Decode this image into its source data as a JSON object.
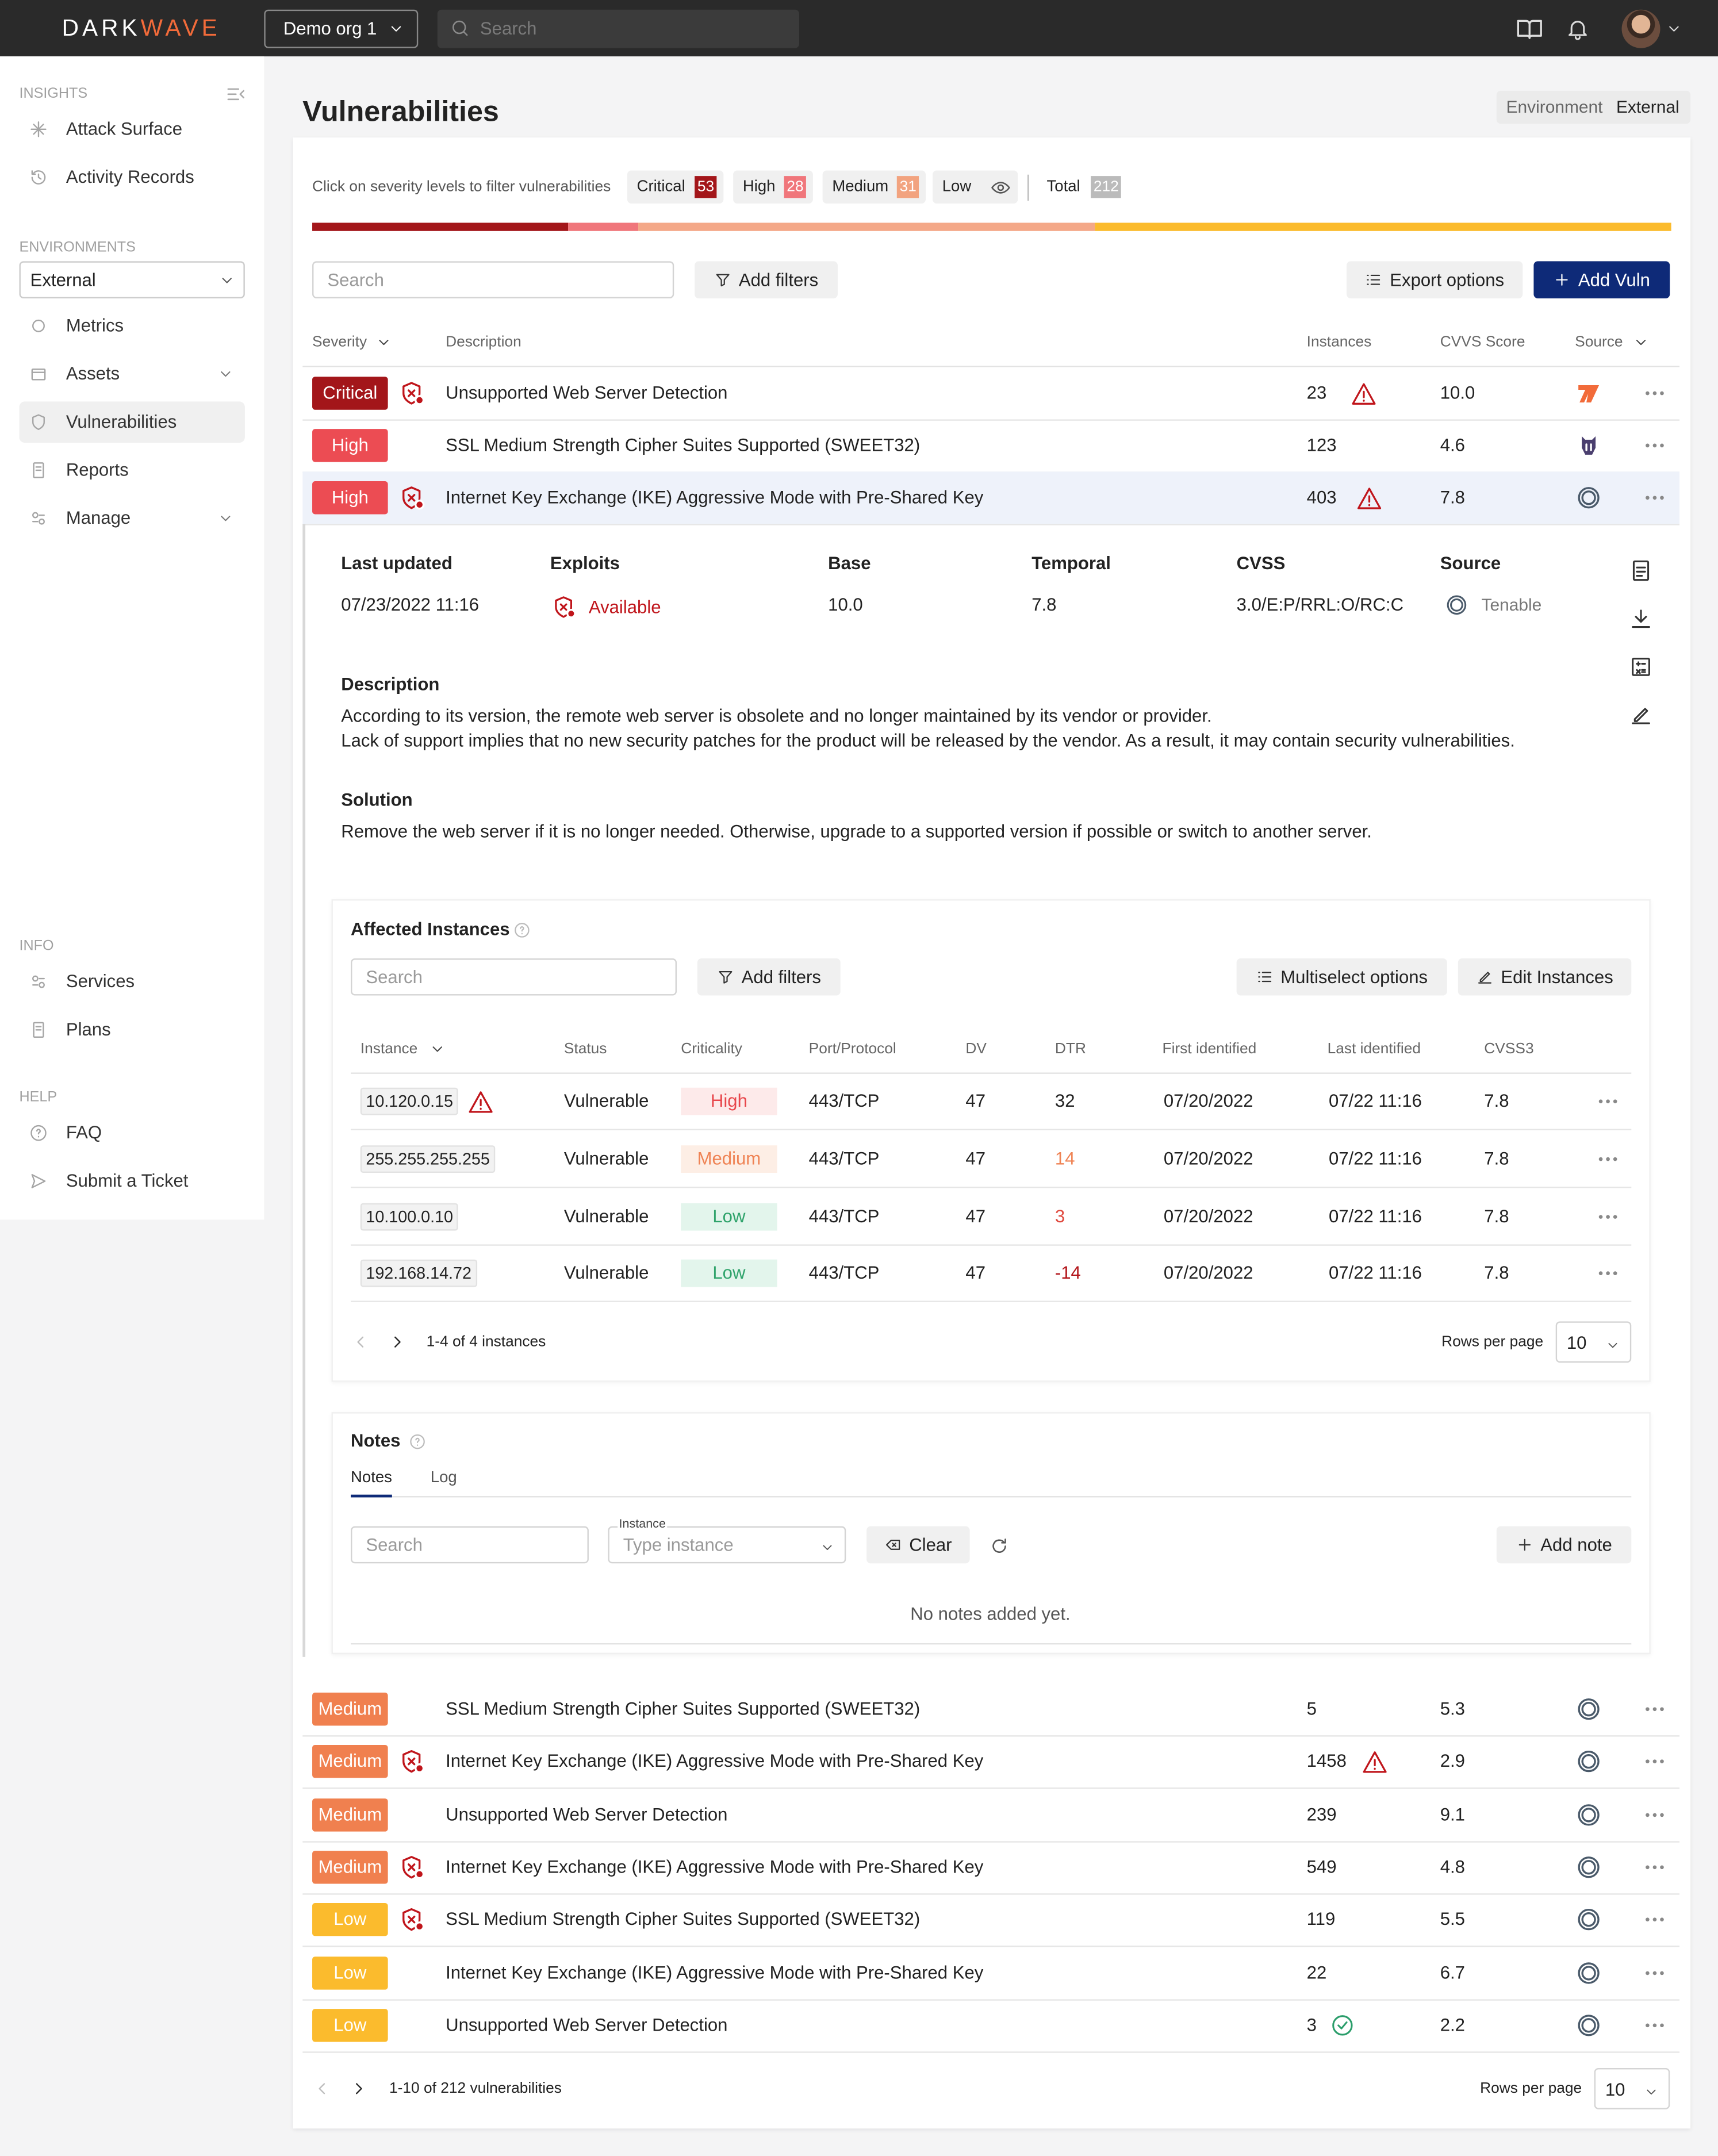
{
  "header": {
    "logo": [
      "DARK",
      "WAVE"
    ],
    "org": "Demo org 1",
    "search": "Search"
  },
  "sidebar": {
    "insights_label": "INSIGHTS",
    "insights": [
      "Attack Surface",
      "Activity Records"
    ],
    "environments_label": "ENVIRONMENTS",
    "environment": "External",
    "environment_items": [
      "Metrics",
      "Assets",
      "Vulnerabilities",
      "Reports",
      "Manage"
    ],
    "info_label": "INFO",
    "info": [
      "Services",
      "Plans"
    ],
    "help_label": "HELP",
    "help": [
      "FAQ",
      "Submit a Ticket"
    ]
  },
  "page": {
    "title": "Vulnerabilities",
    "env_label": "Environment",
    "env_value": "External"
  },
  "severity_filter": {
    "hint": "Click on severity levels to filter vulnerabilities",
    "levels": [
      {
        "label": "Critical",
        "count": 53
      },
      {
        "label": "High",
        "count": 28
      },
      {
        "label": "Medium",
        "count": 31
      },
      {
        "label": "Low"
      }
    ],
    "total_label": "Total",
    "total": 212
  },
  "toolbar": {
    "search": "Search",
    "add_filters": "Add filters",
    "export": "Export options",
    "add": "Add Vuln"
  },
  "table": {
    "columns": [
      "Severity",
      "Description",
      "Instances",
      "CVVS Score",
      "Source"
    ],
    "expanded": 2,
    "rows": [
      {
        "severity": "Critical",
        "exploit": true,
        "description": "Unsupported Web Server Detection",
        "instances": 23,
        "status_icon": "warning",
        "score": "10.0",
        "source": "sword"
      },
      {
        "severity": "High",
        "exploit": false,
        "description": "SSL Medium Strength Cipher Suites Supported (SWEET32)",
        "instances": 123,
        "score": "4.6",
        "source": "helmet"
      },
      {
        "severity": "High",
        "exploit": true,
        "description": "Internet Key Exchange (IKE) Aggressive Mode with Pre-Shared Key",
        "instances": 403,
        "status_icon": "warning",
        "score": "7.8",
        "source": "tenable"
      },
      {
        "severity": "Medium",
        "exploit": false,
        "description": "SSL Medium Strength Cipher Suites Supported (SWEET32)",
        "instances": 5,
        "score": "5.3",
        "source": "tenable"
      },
      {
        "severity": "Medium",
        "exploit": true,
        "description": "Internet Key Exchange (IKE) Aggressive Mode with Pre-Shared Key",
        "instances": 1458,
        "status_icon": "warning",
        "score": "2.9",
        "source": "tenable"
      },
      {
        "severity": "Medium",
        "exploit": false,
        "description": "Unsupported Web Server Detection",
        "instances": 239,
        "score": "9.1",
        "source": "tenable"
      },
      {
        "severity": "Medium",
        "exploit": true,
        "description": "Internet Key Exchange (IKE) Aggressive Mode with Pre-Shared Key",
        "instances": 549,
        "score": "4.8",
        "source": "tenable"
      },
      {
        "severity": "Low",
        "exploit": true,
        "description": "SSL Medium Strength Cipher Suites Supported (SWEET32)",
        "instances": 119,
        "score": "5.5",
        "source": "tenable"
      },
      {
        "severity": "Low",
        "exploit": false,
        "description": "Internet Key Exchange (IKE) Aggressive Mode with Pre-Shared Key",
        "instances": 22,
        "score": "6.7",
        "source": "tenable"
      },
      {
        "severity": "Low",
        "exploit": false,
        "description": "Unsupported Web Server Detection",
        "instances": 3,
        "status_icon": "ok",
        "score": "2.2",
        "source": "tenable"
      }
    ]
  },
  "detail": {
    "fields": [
      {
        "label": "Last updated",
        "value": "07/23/2022 11:16"
      },
      {
        "label": "Exploits",
        "value": "Available"
      },
      {
        "label": "Base",
        "value": "10.0"
      },
      {
        "label": "Temporal",
        "value": "7.8"
      },
      {
        "label": "CVSS",
        "value": "3.0/E:P/RRL:O/RC:C"
      },
      {
        "label": "Source",
        "value": "Tenable"
      }
    ],
    "description_label": "Description",
    "description": [
      "According to its version, the remote web server is obsolete and no longer maintained by its vendor or provider.",
      "Lack of support implies that no new security patches for the product will be released by the vendor. As a result, it may contain security vulnerabilities."
    ],
    "solution_label": "Solution",
    "solution": "Remove the web server if it is no longer needed. Otherwise, upgrade to a supported version if possible or switch to another server."
  },
  "instances": {
    "title": "Affected Instances",
    "search": "Search",
    "add_filters": "Add filters",
    "multiselect": "Multiselect options",
    "edit": "Edit Instances",
    "columns": [
      "Instance",
      "Status",
      "Criticality",
      "Port/Protocol",
      "DV",
      "DTR",
      "First identified",
      "Last identified",
      "CVSS3"
    ],
    "rows": [
      {
        "instance": "10.120.0.15",
        "warning": true,
        "status": "Vulnerable",
        "criticality": "High",
        "port": "443/TCP",
        "dv": 47,
        "dtr": 32,
        "first": "07/20/2022",
        "last": "07/22 11:16",
        "cvss3": "7.8"
      },
      {
        "instance": "255.255.255.255",
        "status": "Vulnerable",
        "criticality": "Medium",
        "port": "443/TCP",
        "dv": 47,
        "dtr": 14,
        "first": "07/20/2022",
        "last": "07/22 11:16",
        "cvss3": "7.8"
      },
      {
        "instance": "10.100.0.10",
        "status": "Vulnerable",
        "criticality": "Low",
        "port": "443/TCP",
        "dv": 47,
        "dtr": 3,
        "first": "07/20/2022",
        "last": "07/22 11:16",
        "cvss3": "7.8"
      },
      {
        "instance": "192.168.14.72",
        "status": "Vulnerable",
        "criticality": "Low",
        "port": "443/TCP",
        "dv": 47,
        "dtr": -14,
        "first": "07/20/2022",
        "last": "07/22 11:16",
        "cvss3": "7.8"
      }
    ],
    "pagination": "1-4 of 4 instances",
    "rows_per_page_label": "Rows per page",
    "rows_per_page": 10
  },
  "notes": {
    "title": "Notes",
    "tabs": [
      "Notes",
      "Log"
    ],
    "search": "Search",
    "instance_label": "Instance",
    "instance_placeholder": "Type instance",
    "clear": "Clear",
    "add": "Add note",
    "empty": "No notes added yet."
  },
  "pagination": {
    "text": "1-10 of 212 vulnerabilities",
    "rows_per_page_label": "Rows per page",
    "rows_per_page": 10
  }
}
